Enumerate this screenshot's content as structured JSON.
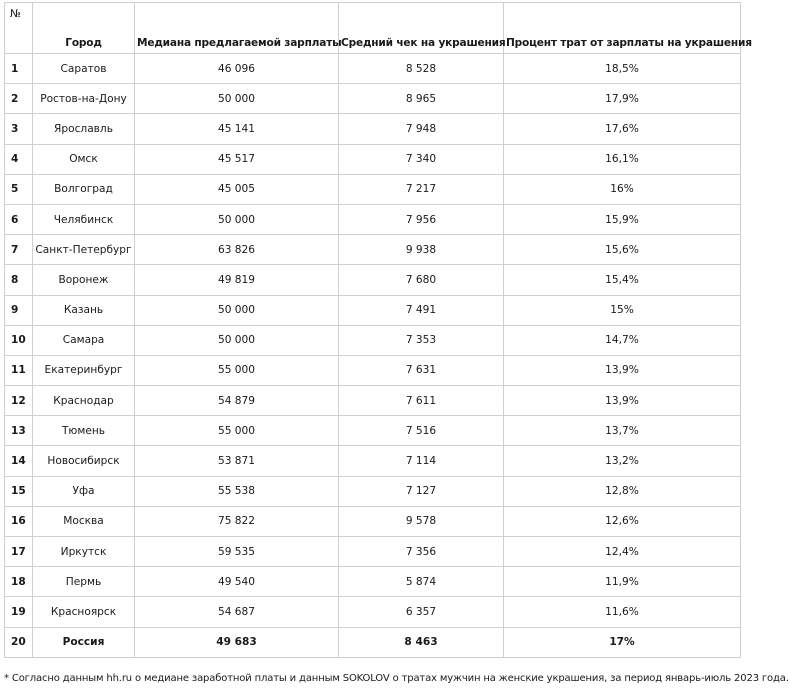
{
  "headers": {
    "num": "№",
    "city": "Город",
    "salary": "Медиана предлагаемой зарплаты",
    "check": "Средний чек на украшения",
    "percent": "Процент трат от зарплаты на украшения"
  },
  "rows": [
    {
      "n": "1",
      "city": "Саратов",
      "salary": "46 096",
      "check": "8 528",
      "percent": "18,5%"
    },
    {
      "n": "2",
      "city": "Ростов-на-Дону",
      "salary": "50 000",
      "check": "8 965",
      "percent": "17,9%"
    },
    {
      "n": "3",
      "city": "Ярославль",
      "salary": "45 141",
      "check": "7 948",
      "percent": "17,6%"
    },
    {
      "n": "4",
      "city": "Омск",
      "salary": "45 517",
      "check": "7 340",
      "percent": "16,1%"
    },
    {
      "n": "5",
      "city": "Волгоград",
      "salary": "45 005",
      "check": "7 217",
      "percent": "16%"
    },
    {
      "n": "6",
      "city": "Челябинск",
      "salary": "50 000",
      "check": "7 956",
      "percent": "15,9%"
    },
    {
      "n": "7",
      "city": "Санкт-Петербург",
      "salary": "63 826",
      "check": "9 938",
      "percent": "15,6%"
    },
    {
      "n": "8",
      "city": "Воронеж",
      "salary": "49 819",
      "check": "7 680",
      "percent": "15,4%"
    },
    {
      "n": "9",
      "city": "Казань",
      "salary": "50 000",
      "check": "7 491",
      "percent": "15%"
    },
    {
      "n": "10",
      "city": "Самара",
      "salary": "50 000",
      "check": "7 353",
      "percent": "14,7%"
    },
    {
      "n": "11",
      "city": "Екатеринбург",
      "salary": "55 000",
      "check": "7 631",
      "percent": "13,9%"
    },
    {
      "n": "12",
      "city": "Краснодар",
      "salary": "54 879",
      "check": "7 611",
      "percent": "13,9%"
    },
    {
      "n": "13",
      "city": "Тюмень",
      "salary": "55 000",
      "check": "7 516",
      "percent": "13,7%"
    },
    {
      "n": "14",
      "city": "Новосибирск",
      "salary": "53 871",
      "check": "7 114",
      "percent": "13,2%"
    },
    {
      "n": "15",
      "city": "Уфа",
      "salary": "55 538",
      "check": "7 127",
      "percent": "12,8%"
    },
    {
      "n": "16",
      "city": "Москва",
      "salary": "75 822",
      "check": "9 578",
      "percent": "12,6%"
    },
    {
      "n": "17",
      "city": "Иркутск",
      "salary": "59 535",
      "check": "7 356",
      "percent": "12,4%"
    },
    {
      "n": "18",
      "city": "Пермь",
      "salary": "49 540",
      "check": "5 874",
      "percent": "11,9%"
    },
    {
      "n": "19",
      "city": "Красноярск",
      "salary": "54 687",
      "check": "6 357",
      "percent": "11,6%"
    },
    {
      "n": "20",
      "city": "Россия",
      "salary": "49 683",
      "check": "8 463",
      "percent": "17%",
      "total": true
    }
  ],
  "footnote": "* Согласно данным hh.ru о медиане заработной платы и данным SOKOLOV о тратах мужчин на женские украшения, за период январь-июль 2023 года."
}
